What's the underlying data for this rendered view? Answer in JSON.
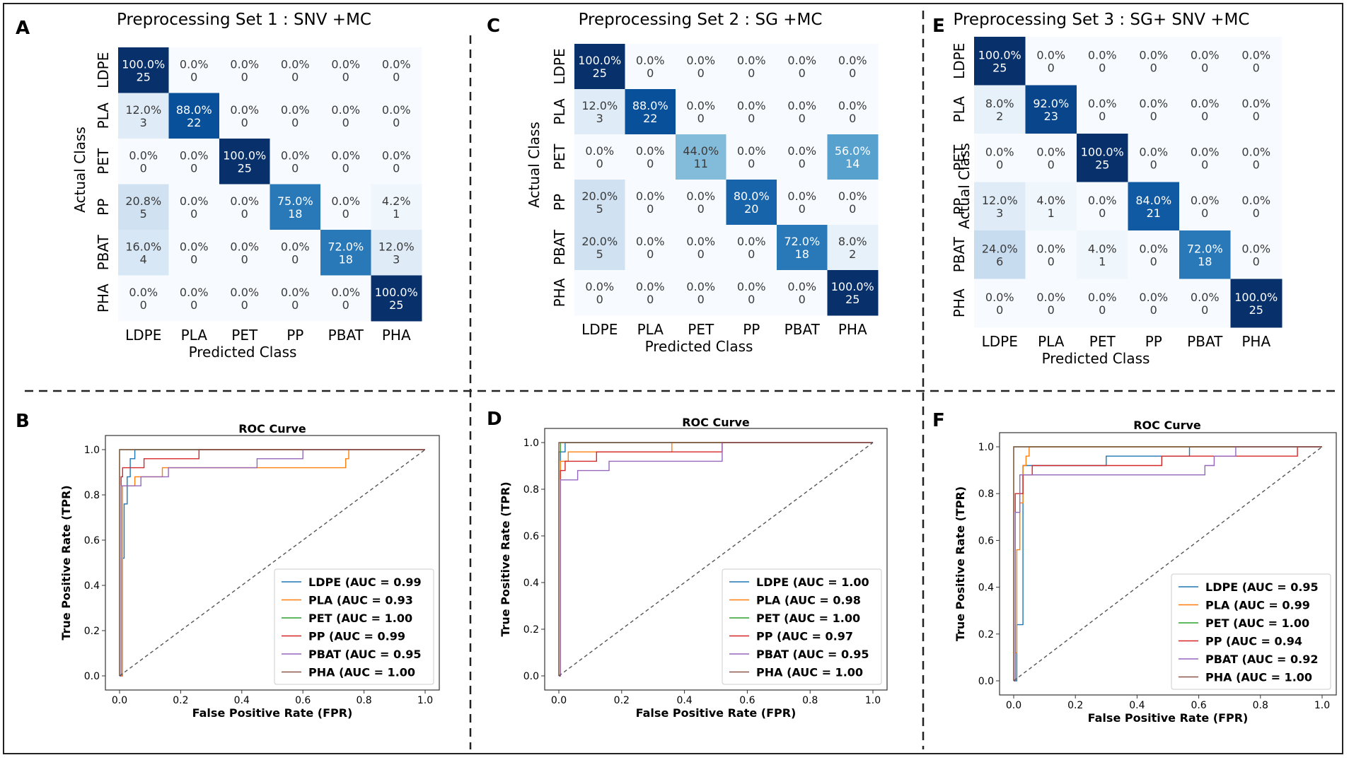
{
  "panel_letters": [
    "A",
    "B",
    "C",
    "D",
    "E",
    "F"
  ],
  "roc_common": {
    "title": "ROC Curve",
    "xlabel": "False Positive Rate (FPR)",
    "ylabel": "True Positive Rate (TPR)",
    "ticks": [
      "0.0",
      "0.2",
      "0.4",
      "0.6",
      "0.8",
      "1.0"
    ]
  },
  "chart_data": [
    {
      "type": "heatmap",
      "title": "Preprocessing Set 1 : SNV +MC",
      "xlabel": "Predicted Class",
      "ylabel": "Actual Class",
      "classes": [
        "LDPE",
        "PLA",
        "PET",
        "PP",
        "PBAT",
        "PHA"
      ],
      "percent": [
        [
          "100.0%",
          "0.0%",
          "0.0%",
          "0.0%",
          "0.0%",
          "0.0%"
        ],
        [
          "12.0%",
          "88.0%",
          "0.0%",
          "0.0%",
          "0.0%",
          "0.0%"
        ],
        [
          "0.0%",
          "0.0%",
          "100.0%",
          "0.0%",
          "0.0%",
          "0.0%"
        ],
        [
          "20.8%",
          "0.0%",
          "0.0%",
          "75.0%",
          "0.0%",
          "4.2%"
        ],
        [
          "16.0%",
          "0.0%",
          "0.0%",
          "0.0%",
          "72.0%",
          "12.0%"
        ],
        [
          "0.0%",
          "0.0%",
          "0.0%",
          "0.0%",
          "0.0%",
          "100.0%"
        ]
      ],
      "counts": [
        [
          25,
          0,
          0,
          0,
          0,
          0
        ],
        [
          3,
          22,
          0,
          0,
          0,
          0
        ],
        [
          0,
          0,
          25,
          0,
          0,
          0
        ],
        [
          5,
          0,
          0,
          18,
          0,
          1
        ],
        [
          4,
          0,
          0,
          0,
          18,
          3
        ],
        [
          0,
          0,
          0,
          0,
          0,
          25
        ]
      ]
    },
    {
      "type": "line",
      "title": "ROC Curve",
      "xlabel": "False Positive Rate (FPR)",
      "ylabel": "True Positive Rate (TPR)",
      "xlim": [
        0,
        1
      ],
      "ylim": [
        0,
        1
      ],
      "legend_position": "lower-right",
      "series": [
        {
          "name": "LDPE",
          "legend": "LDPE (AUC = 0.99",
          "color": "#1f77b4",
          "points": [
            [
              0,
              0
            ],
            [
              0.01,
              0
            ],
            [
              0.01,
              0.52
            ],
            [
              0.015,
              0.52
            ],
            [
              0.015,
              0.76
            ],
            [
              0.025,
              0.76
            ],
            [
              0.025,
              0.88
            ],
            [
              0.035,
              0.88
            ],
            [
              0.035,
              0.96
            ],
            [
              0.05,
              0.96
            ],
            [
              0.05,
              1.0
            ],
            [
              1,
              1
            ]
          ]
        },
        {
          "name": "PLA",
          "legend": "PLA (AUC = 0.93",
          "color": "#ff7f0e",
          "points": [
            [
              0,
              0
            ],
            [
              0.01,
              0
            ],
            [
              0.01,
              0.84
            ],
            [
              0.05,
              0.84
            ],
            [
              0.05,
              0.88
            ],
            [
              0.14,
              0.88
            ],
            [
              0.14,
              0.92
            ],
            [
              0.5,
              0.92
            ],
            [
              0.5,
              0.92
            ],
            [
              0.74,
              0.92
            ],
            [
              0.74,
              0.96
            ],
            [
              0.75,
              0.96
            ],
            [
              0.75,
              1.0
            ],
            [
              1,
              1
            ]
          ]
        },
        {
          "name": "PET",
          "legend": "PET (AUC = 1.00",
          "color": "#2ca02c",
          "points": [
            [
              0,
              0
            ],
            [
              0,
              1.0
            ],
            [
              1,
              1
            ]
          ]
        },
        {
          "name": "PP",
          "legend": "PP (AUC = 0.99",
          "color": "#d62728",
          "points": [
            [
              0,
              0
            ],
            [
              0.005,
              0
            ],
            [
              0.005,
              0.88
            ],
            [
              0.01,
              0.88
            ],
            [
              0.01,
              0.92
            ],
            [
              0.08,
              0.92
            ],
            [
              0.08,
              0.96
            ],
            [
              0.26,
              0.96
            ],
            [
              0.26,
              1.0
            ],
            [
              1,
              1
            ]
          ]
        },
        {
          "name": "PBAT",
          "legend": "PBAT (AUC = 0.95",
          "color": "#9467bd",
          "points": [
            [
              0,
              0
            ],
            [
              0.005,
              0
            ],
            [
              0.005,
              0.84
            ],
            [
              0.07,
              0.84
            ],
            [
              0.07,
              0.88
            ],
            [
              0.16,
              0.88
            ],
            [
              0.16,
              0.92
            ],
            [
              0.45,
              0.92
            ],
            [
              0.45,
              0.96
            ],
            [
              0.6,
              0.96
            ],
            [
              0.6,
              1.0
            ],
            [
              1,
              1
            ]
          ]
        },
        {
          "name": "PHA",
          "legend": "PHA (AUC = 1.00",
          "color": "#8c564b",
          "points": [
            [
              0,
              0
            ],
            [
              0,
              1.0
            ],
            [
              1,
              1
            ]
          ]
        },
        {
          "name": "chance",
          "legend": "",
          "color": "#555555",
          "dashed": true,
          "points": [
            [
              0,
              0
            ],
            [
              1,
              1
            ]
          ]
        }
      ]
    },
    {
      "type": "heatmap",
      "title": "Preprocessing Set 2 : SG +MC",
      "xlabel": "Predicted Class",
      "ylabel": "Actual Class",
      "classes": [
        "LDPE",
        "PLA",
        "PET",
        "PP",
        "PBAT",
        "PHA"
      ],
      "percent": [
        [
          "100.0%",
          "0.0%",
          "0.0%",
          "0.0%",
          "0.0%",
          "0.0%"
        ],
        [
          "12.0%",
          "88.0%",
          "0.0%",
          "0.0%",
          "0.0%",
          "0.0%"
        ],
        [
          "0.0%",
          "0.0%",
          "44.0%",
          "0.0%",
          "0.0%",
          "56.0%"
        ],
        [
          "20.0%",
          "0.0%",
          "0.0%",
          "80.0%",
          "0.0%",
          "0.0%"
        ],
        [
          "20.0%",
          "0.0%",
          "0.0%",
          "0.0%",
          "72.0%",
          "8.0%"
        ],
        [
          "0.0%",
          "0.0%",
          "0.0%",
          "0.0%",
          "0.0%",
          "100.0%"
        ]
      ],
      "counts": [
        [
          25,
          0,
          0,
          0,
          0,
          0
        ],
        [
          3,
          22,
          0,
          0,
          0,
          0
        ],
        [
          0,
          0,
          11,
          0,
          0,
          14
        ],
        [
          5,
          0,
          0,
          20,
          0,
          0
        ],
        [
          5,
          0,
          0,
          0,
          18,
          2
        ],
        [
          0,
          0,
          0,
          0,
          0,
          25
        ]
      ]
    },
    {
      "type": "line",
      "title": "ROC Curve",
      "xlabel": "False Positive Rate (FPR)",
      "ylabel": "True Positive Rate (TPR)",
      "xlim": [
        0,
        1
      ],
      "ylim": [
        0,
        1
      ],
      "legend_position": "lower-right",
      "series": [
        {
          "name": "LDPE",
          "legend": "LDPE (AUC = 1.00",
          "color": "#1f77b4",
          "points": [
            [
              0,
              0
            ],
            [
              0.005,
              0
            ],
            [
              0.005,
              0.96
            ],
            [
              0.02,
              0.96
            ],
            [
              0.02,
              1.0
            ],
            [
              1,
              1
            ]
          ]
        },
        {
          "name": "PLA",
          "legend": "PLA (AUC = 0.98",
          "color": "#ff7f0e",
          "points": [
            [
              0,
              0
            ],
            [
              0.005,
              0
            ],
            [
              0.005,
              0.92
            ],
            [
              0.03,
              0.92
            ],
            [
              0.03,
              0.96
            ],
            [
              0.05,
              0.96
            ],
            [
              0.05,
              0.96
            ],
            [
              0.36,
              0.96
            ],
            [
              0.36,
              1.0
            ],
            [
              1,
              1
            ]
          ]
        },
        {
          "name": "PET",
          "legend": "PET (AUC = 1.00",
          "color": "#2ca02c",
          "points": [
            [
              0,
              0
            ],
            [
              0,
              0.96
            ],
            [
              0.005,
              0.96
            ],
            [
              0.005,
              1.0
            ],
            [
              1,
              1
            ]
          ]
        },
        {
          "name": "PP",
          "legend": "PP (AUC = 0.97",
          "color": "#d62728",
          "points": [
            [
              0,
              0
            ],
            [
              0.005,
              0
            ],
            [
              0.005,
              0.88
            ],
            [
              0.02,
              0.88
            ],
            [
              0.02,
              0.92
            ],
            [
              0.12,
              0.92
            ],
            [
              0.12,
              0.96
            ],
            [
              0.52,
              0.96
            ],
            [
              0.52,
              1.0
            ],
            [
              1,
              1
            ]
          ]
        },
        {
          "name": "PBAT",
          "legend": "PBAT (AUC = 0.95",
          "color": "#9467bd",
          "points": [
            [
              0,
              0
            ],
            [
              0.005,
              0
            ],
            [
              0.005,
              0.84
            ],
            [
              0.06,
              0.84
            ],
            [
              0.06,
              0.88
            ],
            [
              0.16,
              0.88
            ],
            [
              0.16,
              0.92
            ],
            [
              0.52,
              0.92
            ],
            [
              0.52,
              1.0
            ],
            [
              1,
              1
            ]
          ]
        },
        {
          "name": "PHA",
          "legend": "PHA (AUC = 1.00",
          "color": "#8c564b",
          "points": [
            [
              0,
              0
            ],
            [
              0,
              1.0
            ],
            [
              1,
              1
            ]
          ]
        },
        {
          "name": "chance",
          "legend": "",
          "color": "#555555",
          "dashed": true,
          "points": [
            [
              0,
              0
            ],
            [
              1,
              1
            ]
          ]
        }
      ]
    },
    {
      "type": "heatmap",
      "title": "Preprocessing Set 3 : SG+ SNV +MC",
      "xlabel": "Predicted Class",
      "ylabel": "Actual Class",
      "classes": [
        "LDPE",
        "PLA",
        "PET",
        "PP",
        "PBAT",
        "PHA"
      ],
      "percent": [
        [
          "100.0%",
          "0.0%",
          "0.0%",
          "0.0%",
          "0.0%",
          "0.0%"
        ],
        [
          "8.0%",
          "92.0%",
          "0.0%",
          "0.0%",
          "0.0%",
          "0.0%"
        ],
        [
          "0.0%",
          "0.0%",
          "100.0%",
          "0.0%",
          "0.0%",
          "0.0%"
        ],
        [
          "12.0%",
          "4.0%",
          "0.0%",
          "84.0%",
          "0.0%",
          "0.0%"
        ],
        [
          "24.0%",
          "0.0%",
          "4.0%",
          "0.0%",
          "72.0%",
          "0.0%"
        ],
        [
          "0.0%",
          "0.0%",
          "0.0%",
          "0.0%",
          "0.0%",
          "100.0%"
        ]
      ],
      "counts": [
        [
          25,
          0,
          0,
          0,
          0,
          0
        ],
        [
          2,
          23,
          0,
          0,
          0,
          0
        ],
        [
          0,
          0,
          25,
          0,
          0,
          0
        ],
        [
          3,
          1,
          0,
          21,
          0,
          0
        ],
        [
          6,
          0,
          1,
          0,
          18,
          0
        ],
        [
          0,
          0,
          0,
          0,
          0,
          25
        ]
      ]
    },
    {
      "type": "line",
      "title": "ROC Curve",
      "xlabel": "False Positive Rate (FPR)",
      "ylabel": "True Positive Rate (TPR)",
      "xlim": [
        0,
        1
      ],
      "ylim": [
        0,
        1
      ],
      "legend_position": "lower-right",
      "series": [
        {
          "name": "LDPE",
          "legend": "LDPE (AUC = 0.95",
          "color": "#1f77b4",
          "points": [
            [
              0,
              0
            ],
            [
              0.01,
              0
            ],
            [
              0.01,
              0.24
            ],
            [
              0.03,
              0.24
            ],
            [
              0.03,
              0.92
            ],
            [
              0.3,
              0.92
            ],
            [
              0.3,
              0.96
            ],
            [
              0.57,
              0.96
            ],
            [
              0.57,
              1.0
            ],
            [
              1,
              1
            ]
          ]
        },
        {
          "name": "PLA",
          "legend": "PLA (AUC = 0.99",
          "color": "#ff7f0e",
          "points": [
            [
              0,
              0
            ],
            [
              0.005,
              0
            ],
            [
              0.005,
              0.12
            ],
            [
              0.01,
              0.12
            ],
            [
              0.01,
              0.56
            ],
            [
              0.02,
              0.56
            ],
            [
              0.02,
              0.76
            ],
            [
              0.03,
              0.76
            ],
            [
              0.03,
              0.92
            ],
            [
              0.04,
              0.92
            ],
            [
              0.04,
              0.96
            ],
            [
              0.05,
              0.96
            ],
            [
              0.05,
              1.0
            ],
            [
              1,
              1
            ]
          ]
        },
        {
          "name": "PET",
          "legend": "PET (AUC = 1.00",
          "color": "#2ca02c",
          "points": [
            [
              0,
              0
            ],
            [
              0,
              1.0
            ],
            [
              1,
              1
            ]
          ]
        },
        {
          "name": "PP",
          "legend": "PP (AUC = 0.94",
          "color": "#d62728",
          "points": [
            [
              0,
              0
            ],
            [
              0.005,
              0
            ],
            [
              0.005,
              0.8
            ],
            [
              0.03,
              0.8
            ],
            [
              0.03,
              0.88
            ],
            [
              0.06,
              0.88
            ],
            [
              0.06,
              0.92
            ],
            [
              0.48,
              0.92
            ],
            [
              0.48,
              0.96
            ],
            [
              0.92,
              0.96
            ],
            [
              0.92,
              1.0
            ],
            [
              1,
              1
            ]
          ]
        },
        {
          "name": "PBAT",
          "legend": "PBAT (AUC = 0.92",
          "color": "#9467bd",
          "points": [
            [
              0,
              0
            ],
            [
              0.005,
              0
            ],
            [
              0.005,
              0.72
            ],
            [
              0.02,
              0.72
            ],
            [
              0.02,
              0.88
            ],
            [
              0.62,
              0.88
            ],
            [
              0.62,
              0.92
            ],
            [
              0.65,
              0.92
            ],
            [
              0.65,
              0.96
            ],
            [
              0.72,
              0.96
            ],
            [
              0.72,
              1.0
            ],
            [
              1,
              1
            ]
          ]
        },
        {
          "name": "PHA",
          "legend": "PHA (AUC = 1.00",
          "color": "#8c564b",
          "points": [
            [
              0,
              0
            ],
            [
              0,
              1.0
            ],
            [
              1,
              1
            ]
          ]
        },
        {
          "name": "chance",
          "legend": "",
          "color": "#555555",
          "dashed": true,
          "points": [
            [
              0,
              0
            ],
            [
              1,
              1
            ]
          ]
        }
      ]
    }
  ]
}
